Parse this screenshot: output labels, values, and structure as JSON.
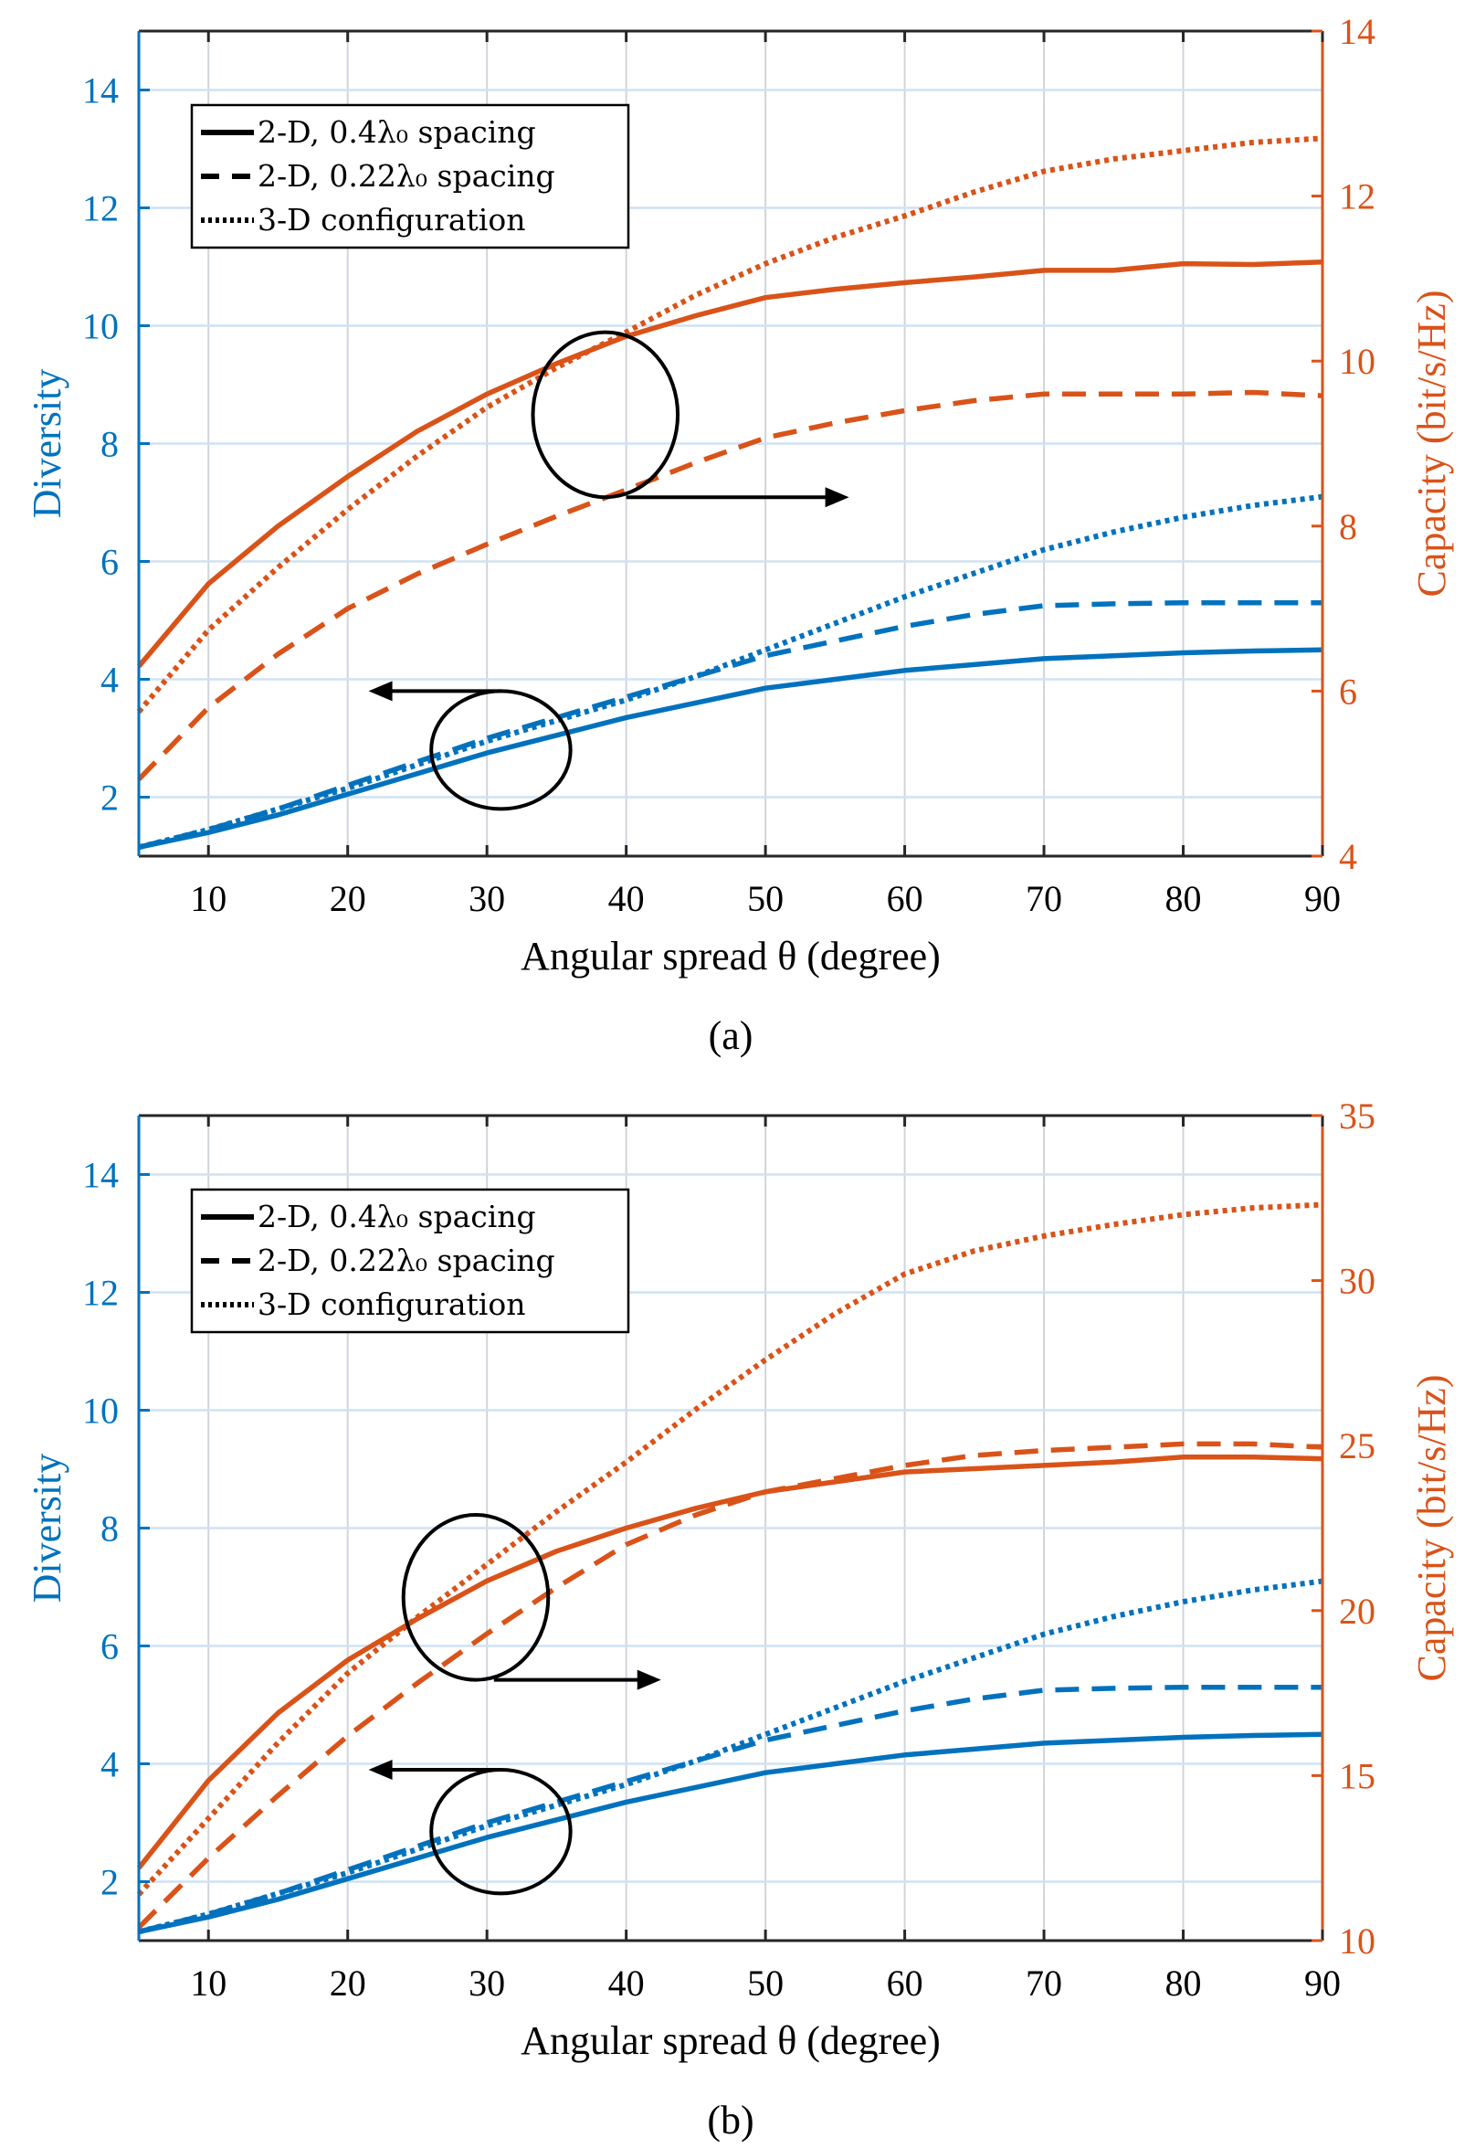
{
  "colors": {
    "diversity": "#0072BD",
    "capacity": "#D95319",
    "axis": "#262626",
    "grid_v": "#d0d5db",
    "grid_h": "#cfe2f3",
    "annotation": "#000000"
  },
  "chart_data": [
    {
      "type": "line",
      "panel_caption": "(a)",
      "title": "",
      "xlabel": "Angular spread θ (degree)",
      "ylabel_left": "Diversity",
      "ylabel_right": "Capacity (bit/s/Hz)",
      "xlim": [
        5,
        90
      ],
      "ylim_left": [
        1,
        15
      ],
      "ylim_right": [
        4,
        14
      ],
      "xticks": [
        10,
        20,
        30,
        40,
        50,
        60,
        70,
        80,
        90
      ],
      "yticks_left": [
        2,
        4,
        6,
        8,
        10,
        12,
        14
      ],
      "yticks_right": [
        4,
        6,
        8,
        10,
        12,
        14
      ],
      "grid": true,
      "legend": {
        "placement": "top-left",
        "entries": [
          {
            "label": "2-D, 0.4λ₀ spacing",
            "style": "solid"
          },
          {
            "label": "2-D, 0.22λ₀ spacing",
            "style": "dashed"
          },
          {
            "label": "3-D configuration",
            "style": "dotted"
          }
        ]
      },
      "x": [
        5,
        10,
        15,
        20,
        25,
        30,
        35,
        40,
        45,
        50,
        55,
        60,
        65,
        70,
        75,
        80,
        85,
        90
      ],
      "series": [
        {
          "name": "Diversity 2-D 0.4λ₀",
          "axis": "left",
          "style": "solid",
          "values": [
            1.15,
            1.4,
            1.7,
            2.05,
            2.4,
            2.75,
            3.05,
            3.35,
            3.6,
            3.85,
            4.0,
            4.15,
            4.25,
            4.35,
            4.4,
            4.45,
            4.48,
            4.5
          ]
        },
        {
          "name": "Diversity 2-D 0.22λ₀",
          "axis": "left",
          "style": "dashed",
          "values": [
            1.15,
            1.45,
            1.8,
            2.2,
            2.6,
            3.0,
            3.35,
            3.7,
            4.05,
            4.4,
            4.65,
            4.9,
            5.1,
            5.25,
            5.28,
            5.3,
            5.3,
            5.3
          ]
        },
        {
          "name": "Diversity 3-D",
          "axis": "left",
          "style": "dotted",
          "values": [
            1.15,
            1.45,
            1.8,
            2.15,
            2.55,
            2.95,
            3.3,
            3.65,
            4.05,
            4.5,
            4.95,
            5.4,
            5.8,
            6.2,
            6.5,
            6.75,
            6.95,
            7.1
          ]
        },
        {
          "name": "Capacity 2-D 0.4λ₀",
          "axis": "right",
          "style": "solid",
          "values": [
            6.3,
            7.3,
            8.0,
            8.6,
            9.15,
            9.6,
            9.97,
            10.3,
            10.55,
            10.77,
            10.87,
            10.95,
            11.02,
            11.1,
            11.1,
            11.18,
            11.17,
            11.2
          ]
        },
        {
          "name": "Capacity 2-D 0.22λ₀",
          "axis": "right",
          "style": "dashed",
          "values": [
            4.93,
            5.8,
            6.45,
            7.0,
            7.42,
            7.78,
            8.12,
            8.44,
            8.77,
            9.07,
            9.25,
            9.4,
            9.52,
            9.6,
            9.6,
            9.6,
            9.62,
            9.58
          ]
        },
        {
          "name": "Capacity 3-D",
          "axis": "right",
          "style": "dotted",
          "values": [
            5.75,
            6.74,
            7.5,
            8.2,
            8.85,
            9.44,
            9.92,
            10.35,
            10.8,
            11.18,
            11.5,
            11.76,
            12.05,
            12.3,
            12.45,
            12.55,
            12.65,
            12.7
          ]
        }
      ],
      "annotations": [
        {
          "kind": "ellipse-arrow",
          "target_axis": "right",
          "cx": 38.5,
          "cy": 9.35,
          "rx": 5.2,
          "ry": 1.0,
          "arrow_from": [
            40.0,
            8.35
          ],
          "arrow_to": [
            56.0,
            8.35
          ],
          "direction": "right"
        },
        {
          "kind": "ellipse-arrow",
          "target_axis": "left",
          "cx": 31.0,
          "cy": 2.8,
          "rx": 5.0,
          "ry": 1.0,
          "arrow_from": [
            31.0,
            3.8
          ],
          "arrow_to": [
            21.5,
            3.8
          ],
          "direction": "left"
        }
      ]
    },
    {
      "type": "line",
      "panel_caption": "(b)",
      "title": "",
      "xlabel": "Angular spread θ (degree)",
      "ylabel_left": "Diversity",
      "ylabel_right": "Capacity (bit/s/Hz)",
      "xlim": [
        5,
        90
      ],
      "ylim_left": [
        1,
        15
      ],
      "ylim_right": [
        10,
        35
      ],
      "xticks": [
        10,
        20,
        30,
        40,
        50,
        60,
        70,
        80,
        90
      ],
      "yticks_left": [
        2,
        4,
        6,
        8,
        10,
        12,
        14
      ],
      "yticks_right": [
        10,
        15,
        20,
        25,
        30,
        35
      ],
      "grid": true,
      "legend": {
        "placement": "top-left",
        "entries": [
          {
            "label": "2-D, 0.4λ₀ spacing",
            "style": "solid"
          },
          {
            "label": "2-D, 0.22λ₀ spacing",
            "style": "dashed"
          },
          {
            "label": "3-D configuration",
            "style": "dotted"
          }
        ]
      },
      "x": [
        5,
        10,
        15,
        20,
        25,
        30,
        35,
        40,
        45,
        50,
        55,
        60,
        65,
        70,
        75,
        80,
        85,
        90
      ],
      "series": [
        {
          "name": "Diversity 2-D 0.4λ₀",
          "axis": "left",
          "style": "solid",
          "values": [
            1.15,
            1.4,
            1.7,
            2.05,
            2.4,
            2.75,
            3.05,
            3.35,
            3.6,
            3.85,
            4.0,
            4.15,
            4.25,
            4.35,
            4.4,
            4.45,
            4.48,
            4.5
          ]
        },
        {
          "name": "Diversity 2-D 0.22λ₀",
          "axis": "left",
          "style": "dashed",
          "values": [
            1.15,
            1.45,
            1.8,
            2.2,
            2.6,
            3.0,
            3.35,
            3.7,
            4.05,
            4.4,
            4.65,
            4.9,
            5.1,
            5.25,
            5.28,
            5.3,
            5.3,
            5.3
          ]
        },
        {
          "name": "Diversity 3-D",
          "axis": "left",
          "style": "dotted",
          "values": [
            1.15,
            1.45,
            1.8,
            2.15,
            2.55,
            2.95,
            3.3,
            3.65,
            4.05,
            4.5,
            4.95,
            5.4,
            5.8,
            6.2,
            6.5,
            6.75,
            6.95,
            7.1
          ]
        },
        {
          "name": "Capacity 2-D 0.4λ₀",
          "axis": "right",
          "style": "solid",
          "values": [
            12.2,
            14.85,
            16.9,
            18.5,
            19.75,
            20.9,
            21.8,
            22.5,
            23.1,
            23.6,
            23.9,
            24.2,
            24.3,
            24.4,
            24.5,
            24.65,
            24.65,
            24.6
          ]
        },
        {
          "name": "Capacity 2-D 0.22λ₀",
          "axis": "right",
          "style": "dashed",
          "values": [
            10.4,
            12.5,
            14.4,
            16.2,
            17.8,
            19.3,
            20.7,
            22.0,
            22.9,
            23.6,
            24.0,
            24.4,
            24.7,
            24.85,
            24.95,
            25.05,
            25.05,
            24.95
          ]
        },
        {
          "name": "Capacity 3-D",
          "axis": "right",
          "style": "dotted",
          "values": [
            11.4,
            13.7,
            16.0,
            18.1,
            19.8,
            21.4,
            23.0,
            24.5,
            26.1,
            27.6,
            29.0,
            30.2,
            30.9,
            31.35,
            31.7,
            32.0,
            32.2,
            32.3
          ]
        }
      ],
      "annotations": [
        {
          "kind": "ellipse-arrow",
          "target_axis": "right",
          "cx": 29.2,
          "cy": 20.4,
          "rx": 5.2,
          "ry": 2.5,
          "arrow_from": [
            30.5,
            17.9
          ],
          "arrow_to": [
            42.5,
            17.9
          ],
          "direction": "right"
        },
        {
          "kind": "ellipse-arrow",
          "target_axis": "left",
          "cx": 31.0,
          "cy": 2.85,
          "rx": 5.0,
          "ry": 1.05,
          "arrow_from": [
            31.0,
            3.9
          ],
          "arrow_to": [
            21.5,
            3.9
          ],
          "direction": "left"
        }
      ]
    }
  ]
}
